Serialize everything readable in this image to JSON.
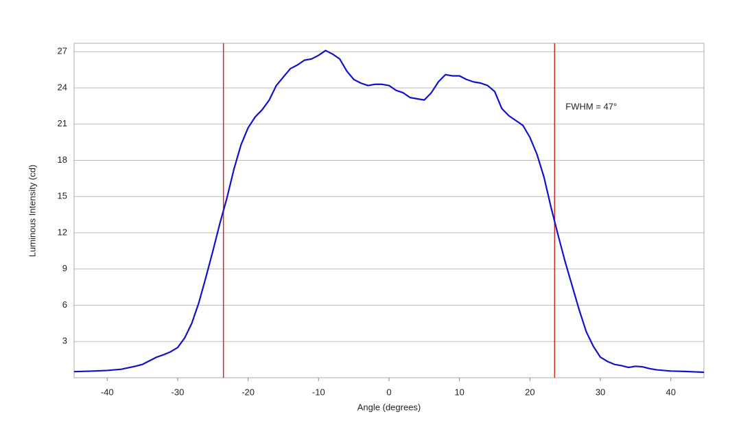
{
  "chart_data": {
    "type": "line",
    "x_label": "Angle (degrees)",
    "y_label": "Luminous Intensity (cd)",
    "annotation": "FWHM = 47°",
    "x": [
      -44.7,
      -42,
      -40,
      -38,
      -36,
      -35,
      -34,
      -33,
      -32,
      -31,
      -30,
      -29,
      -28,
      -27,
      -26,
      -25,
      -24,
      -23,
      -22,
      -21,
      -20,
      -19,
      -18,
      -17,
      -16,
      -15,
      -14,
      -13,
      -12,
      -11,
      -10,
      -9,
      -8,
      -7,
      -6,
      -5,
      -4,
      -3,
      -2,
      -1,
      0,
      1,
      2,
      3,
      4,
      5,
      6,
      7,
      8,
      9,
      10,
      11,
      12,
      13,
      14,
      15,
      16,
      17,
      18,
      19,
      20,
      21,
      22,
      23,
      24,
      25,
      26,
      27,
      28,
      29,
      30,
      31,
      32,
      33,
      34,
      35,
      36,
      37,
      38,
      40,
      42,
      44.7
    ],
    "series": [
      {
        "color": "#1010cc",
        "values": [
          0.5,
          0.55,
          0.6,
          0.7,
          0.95,
          1.1,
          1.4,
          1.7,
          1.9,
          2.15,
          2.5,
          3.3,
          4.5,
          6.2,
          8.3,
          10.5,
          12.8,
          14.9,
          17.3,
          19.3,
          20.7,
          21.6,
          22.2,
          23.0,
          24.2,
          24.9,
          25.6,
          25.9,
          26.3,
          26.4,
          26.7,
          27.1,
          26.8,
          26.4,
          25.4,
          24.7,
          24.4,
          24.2,
          24.3,
          24.3,
          24.2,
          23.8,
          23.6,
          23.2,
          23.1,
          23.0,
          23.6,
          24.5,
          25.1,
          25.0,
          25.0,
          24.7,
          24.5,
          24.4,
          24.2,
          23.7,
          22.3,
          21.7,
          21.3,
          20.9,
          19.9,
          18.5,
          16.6,
          14.1,
          11.8,
          9.6,
          7.6,
          5.6,
          3.8,
          2.6,
          1.7,
          1.35,
          1.1,
          1.0,
          0.85,
          0.95,
          0.9,
          0.75,
          0.65,
          0.55,
          0.52,
          0.45
        ]
      }
    ],
    "vlines": [
      -23.5,
      23.5
    ],
    "vline_color": "#dd2222",
    "xlim": [
      -44.7,
      44.7
    ],
    "xticks": [
      -40,
      -30,
      -20,
      -10,
      0,
      10,
      20,
      30,
      40
    ],
    "ylim": [
      0,
      27.7
    ],
    "yticks": [
      3,
      6,
      9,
      12,
      15,
      18,
      21,
      24,
      27
    ],
    "grid": true
  }
}
